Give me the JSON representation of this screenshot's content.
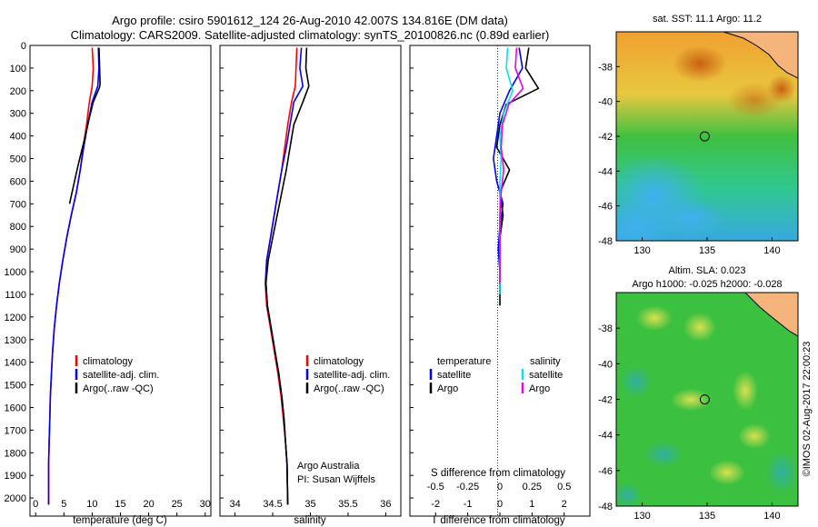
{
  "header": {
    "line1": "Argo profile: csiro 5901612_124 26-Aug-2010 42.007S 134.816E (DM data)",
    "line2": "Climatology: CARS2009. Satellite-adjusted climatology: synTS_20100826.nc (0.89d earlier)"
  },
  "colors": {
    "climatology": "#ff0000",
    "satellite": "#0000ff",
    "argo": "#000000",
    "s_satellite": "#00e5ee",
    "s_argo": "#ee00ee"
  },
  "chart_data": [
    {
      "id": "temperature",
      "type": "line",
      "xlabel": "temperature (deg C)",
      "xlim": [
        -1,
        31
      ],
      "ylim": [
        2080,
        0
      ],
      "xticks": [
        "0",
        "5",
        "10",
        "15",
        "20",
        "25",
        "30"
      ],
      "yticks": [
        "0",
        "100",
        "200",
        "300",
        "400",
        "500",
        "600",
        "700",
        "800",
        "900",
        "1000",
        "1100",
        "1200",
        "1300",
        "1400",
        "1500",
        "1600",
        "1700",
        "1800",
        "1900",
        "2000"
      ],
      "legend": [
        "climatology",
        "satellite-adj. clim.",
        "Argo(..raw -QC)"
      ],
      "series": [
        {
          "name": "climatology",
          "color": "#ff0000",
          "x": [
            10.0,
            10.2,
            10.0,
            9.5,
            9.0,
            8.4,
            7.9,
            7.2,
            6.3,
            5.5,
            4.8,
            4.2,
            3.7,
            3.3,
            3.0,
            2.8,
            2.6,
            2.5,
            2.4,
            2.3,
            2.3
          ],
          "y": [
            10,
            100,
            180,
            250,
            350,
            450,
            550,
            650,
            750,
            850,
            950,
            1050,
            1150,
            1250,
            1350,
            1450,
            1550,
            1650,
            1750,
            1850,
            2030
          ]
        },
        {
          "name": "satellite-adj. clim.",
          "color": "#0000ff",
          "x": [
            11.1,
            11.2,
            11.0,
            10.0,
            9.2,
            8.5,
            7.9,
            7.2,
            6.3,
            5.5,
            4.8,
            4.2,
            3.7,
            3.3,
            3.0,
            2.8,
            2.6,
            2.5,
            2.4,
            2.3,
            2.3
          ],
          "y": [
            10,
            100,
            180,
            250,
            350,
            450,
            550,
            650,
            750,
            850,
            950,
            1050,
            1150,
            1250,
            1350,
            1450,
            1550,
            1650,
            1750,
            1850,
            2030
          ]
        },
        {
          "name": "Argo(..raw -QC)",
          "color": "#000000",
          "x": [
            11.2,
            11.3,
            11.4,
            11.3,
            10.2,
            9.5,
            8.8,
            8.1,
            7.5,
            6.7,
            6.0
          ],
          "y": [
            10,
            80,
            170,
            185,
            250,
            320,
            400,
            470,
            530,
            620,
            700
          ]
        }
      ]
    },
    {
      "id": "salinity",
      "type": "line",
      "xlabel": "salinity",
      "xlim": [
        33.8,
        36.2
      ],
      "ylim": [
        2080,
        0
      ],
      "xticks": [
        "34",
        "34.5",
        "35",
        "35.5",
        "36"
      ],
      "legend": [
        "climatology",
        "satellite-adj. clim.",
        "Argo(..raw -QC)"
      ],
      "annotations": [
        "Argo Australia",
        "PI: Susan Wijffels"
      ],
      "series": [
        {
          "name": "climatology",
          "color": "#ff0000",
          "x": [
            34.82,
            34.81,
            34.8,
            34.75,
            34.7,
            34.66,
            34.62,
            34.57,
            34.52,
            34.47,
            34.42,
            34.4,
            34.42,
            34.47,
            34.52,
            34.57,
            34.61,
            34.64,
            34.67,
            34.69,
            34.7
          ],
          "y": [
            10,
            100,
            180,
            250,
            350,
            450,
            550,
            650,
            750,
            850,
            950,
            1050,
            1150,
            1250,
            1350,
            1450,
            1550,
            1650,
            1750,
            1850,
            2030
          ]
        },
        {
          "name": "satellite-adj. clim.",
          "color": "#0000ff",
          "x": [
            34.88,
            34.86,
            34.9,
            34.78,
            34.73,
            34.68,
            34.62,
            34.57,
            34.52,
            34.47,
            34.42,
            34.41,
            34.43,
            34.48,
            34.53,
            34.58,
            34.62,
            34.65,
            34.67,
            34.69,
            34.7
          ],
          "y": [
            10,
            100,
            180,
            250,
            350,
            450,
            550,
            650,
            750,
            850,
            950,
            1050,
            1150,
            1250,
            1350,
            1450,
            1550,
            1650,
            1750,
            1850,
            2030
          ]
        },
        {
          "name": "Argo(..raw -QC)",
          "color": "#000000",
          "x": [
            34.95,
            34.94,
            34.98,
            34.9,
            34.78,
            34.73,
            34.68,
            34.62,
            34.56,
            34.5,
            34.44,
            34.41,
            34.43,
            34.48,
            34.53,
            34.58,
            34.62,
            34.65,
            34.67,
            34.69,
            34.7
          ],
          "y": [
            10,
            100,
            180,
            250,
            350,
            450,
            550,
            650,
            750,
            850,
            950,
            1050,
            1150,
            1250,
            1350,
            1450,
            1550,
            1650,
            1750,
            1850,
            2030
          ]
        }
      ]
    },
    {
      "id": "difference",
      "type": "line",
      "xlabel": "T difference from climatology",
      "xlabel2": "S difference from climatology",
      "xlim": [
        -2.8,
        2.8
      ],
      "ylim": [
        2080,
        0
      ],
      "xticks": [
        "-2",
        "-1",
        "0",
        "1",
        "2"
      ],
      "xticks2": [
        "-0.5",
        "-0.25",
        "0",
        "0.25",
        "0.5"
      ],
      "legend_heads": [
        "temperature",
        "salinity"
      ],
      "legend": [
        "satellite",
        "Argo",
        "satellite",
        "Argo"
      ],
      "series": [
        {
          "name": "satellite",
          "color": "#0000ff",
          "x": [
            0.6,
            0.7,
            0.3,
            0.0,
            -0.1,
            -0.2,
            -0.1,
            0.1,
            0.0,
            -0.05,
            0.0,
            0.0
          ],
          "y": [
            10,
            100,
            200,
            300,
            400,
            500,
            600,
            700,
            800,
            900,
            1000,
            1100
          ]
        },
        {
          "name": "Argo",
          "color": "#000000",
          "x": [
            0.9,
            0.8,
            1.2,
            0.2,
            0.0,
            -0.1,
            0.3,
            0.0,
            0.1,
            0.0,
            0.0,
            0.0,
            0.0
          ],
          "y": [
            10,
            100,
            190,
            260,
            350,
            450,
            550,
            650,
            750,
            850,
            950,
            1050,
            1150
          ]
        },
        {
          "name": "satellite",
          "color": "#00e5ee",
          "x": [
            0.06,
            0.05,
            0.1,
            0.03,
            0.0,
            0.01,
            0.0,
            0.0,
            0.0,
            0.0,
            0.0,
            0.0
          ],
          "y": [
            10,
            100,
            200,
            300,
            400,
            500,
            600,
            700,
            800,
            900,
            1000,
            1100
          ]
        },
        {
          "name": "Argo",
          "color": "#ee00ee",
          "x": [
            0.13,
            0.12,
            0.18,
            0.07,
            0.02,
            0.01,
            0.03,
            0.01,
            0.0,
            0.0,
            0.0,
            0.0
          ],
          "y": [
            10,
            100,
            190,
            260,
            350,
            450,
            550,
            650,
            750,
            850,
            950,
            1050
          ]
        }
      ]
    },
    {
      "id": "sst-map",
      "type": "heatmap",
      "title": "sat. SST: 11.1  Argo: 11.2",
      "xticks": [
        "130",
        "135",
        "140"
      ],
      "yticks": [
        "-38",
        "-40",
        "-42",
        "-44",
        "-46",
        "-48"
      ],
      "xlim": [
        128,
        142
      ],
      "ylim": [
        -48,
        -36
      ],
      "marker": {
        "lon": 134.816,
        "lat": -42.007
      }
    },
    {
      "id": "sla-map",
      "type": "heatmap",
      "title": "Altim. SLA: 0.023",
      "subtitle": "Argo h1000: -0.025 h2000: -0.028",
      "xticks": [
        "130",
        "135",
        "140"
      ],
      "yticks": [
        "-38",
        "-40",
        "-42",
        "-44",
        "-46",
        "-48"
      ],
      "xlim": [
        128,
        142
      ],
      "ylim": [
        -48,
        -36
      ],
      "marker": {
        "lon": 134.816,
        "lat": -42.007
      }
    }
  ],
  "footer": {
    "stamp": "©IMOS 02-Aug-2017 22:00:23"
  }
}
